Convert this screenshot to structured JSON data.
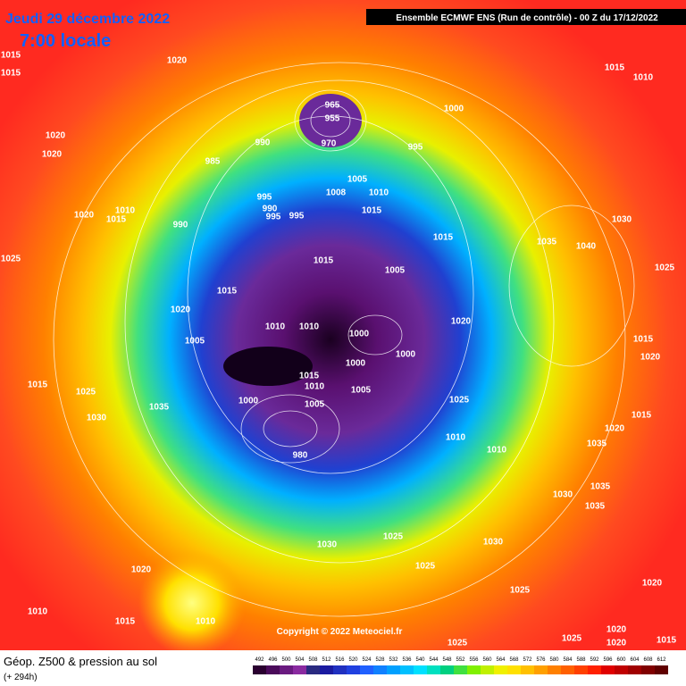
{
  "header": {
    "date": "Jeudi 29 décembre 2022",
    "time": "7:00 locale",
    "run": "Ensemble ECMWF ENS  (Run de contrôle)  -  00 Z du 17/12/2022"
  },
  "footer": {
    "title": "Géop. Z500 & pression au sol",
    "lead": "(+ 294h)",
    "copyright": "Copyright © 2022 Meteociel.fr"
  },
  "legend": {
    "values": [
      "492",
      "496",
      "500",
      "504",
      "508",
      "512",
      "516",
      "520",
      "524",
      "528",
      "532",
      "536",
      "540",
      "544",
      "548",
      "552",
      "556",
      "560",
      "564",
      "568",
      "572",
      "576",
      "580",
      "584",
      "588",
      "592",
      "596",
      "600",
      "604",
      "608",
      "612"
    ],
    "colors": [
      "#2a0030",
      "#4a0a5a",
      "#6a1a80",
      "#8a2aa0",
      "#2a2a80",
      "#1a1aa0",
      "#2030c0",
      "#2040e0",
      "#2060ff",
      "#1080ff",
      "#00a0ff",
      "#00c0ff",
      "#00e0ff",
      "#00e0c0",
      "#00d080",
      "#40e040",
      "#80f000",
      "#c0f000",
      "#f0f000",
      "#ffe000",
      "#ffc000",
      "#ffa000",
      "#ff8000",
      "#ff6000",
      "#ff4000",
      "#ff2000",
      "#e00000",
      "#c00000",
      "#a00000",
      "#800000",
      "#600000"
    ]
  },
  "isobars": [
    "1015",
    "1015",
    "1020",
    "1020",
    "1020",
    "1020",
    "1015",
    "1010",
    "990",
    "1025",
    "1020",
    "1015",
    "1005",
    "1015",
    "1025",
    "1030",
    "1035",
    "1000",
    "980",
    "990",
    "985",
    "995",
    "990",
    "995",
    "995",
    "965",
    "955",
    "970",
    "1005",
    "1010",
    "1008",
    "995",
    "1000",
    "1015",
    "1015",
    "1005",
    "1010",
    "1010",
    "1000",
    "1000",
    "1000",
    "1015",
    "1010",
    "1005",
    "1005",
    "1025",
    "1010",
    "1010",
    "1020",
    "1015",
    "1030",
    "1035",
    "1040",
    "1015",
    "1010",
    "1030",
    "1025",
    "1025",
    "1030",
    "1020",
    "1010",
    "1015",
    "1010",
    "1025",
    "1025",
    "1020",
    "1020",
    "1015",
    "1020",
    "1025",
    "1035",
    "1035",
    "1030",
    "1035",
    "1020",
    "1015",
    "1015",
    "1020",
    "1025"
  ]
}
